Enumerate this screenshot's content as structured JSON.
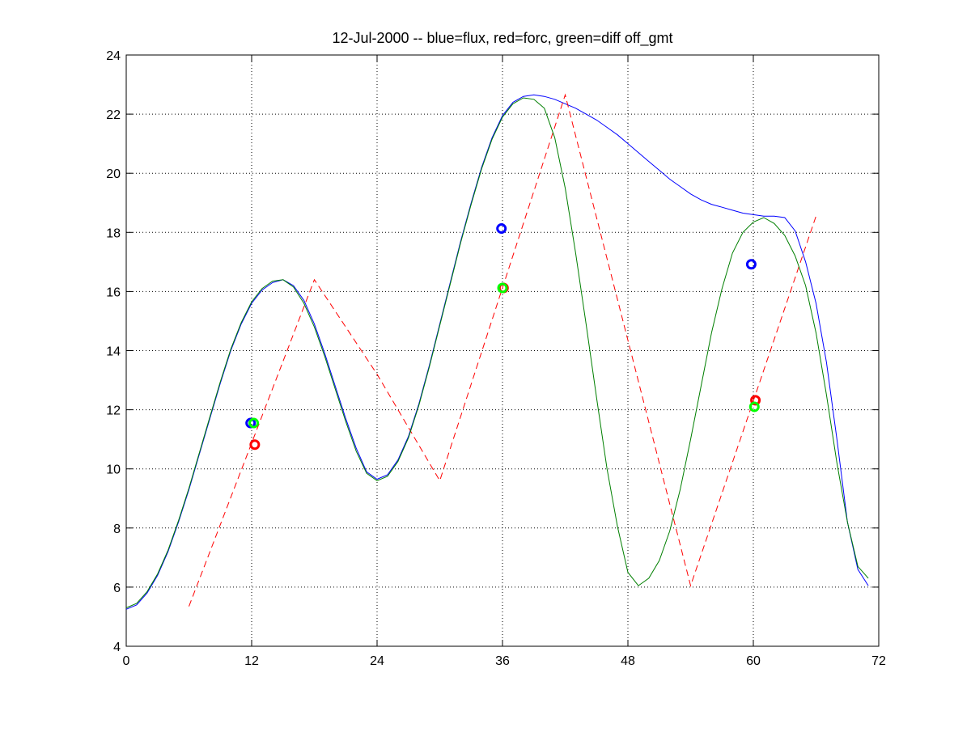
{
  "chart_data": {
    "type": "line",
    "title": "12-Jul-2000 -- blue=flux, red=forc, green=diff off_gmt",
    "xlabel": "",
    "ylabel": "",
    "xlim": [
      0,
      72
    ],
    "ylim": [
      4,
      24
    ],
    "xticks": [
      0,
      12,
      24,
      36,
      48,
      60,
      72
    ],
    "yticks": [
      4,
      6,
      8,
      10,
      12,
      14,
      16,
      18,
      20,
      22,
      24
    ],
    "grid": true,
    "series": [
      {
        "color": "#0000ff",
        "style": "solid",
        "points": [
          [
            0,
            5.25
          ],
          [
            1,
            5.4
          ],
          [
            2,
            5.8
          ],
          [
            3,
            6.4
          ],
          [
            4,
            7.2
          ],
          [
            5,
            8.2
          ],
          [
            6,
            9.3
          ],
          [
            7,
            10.5
          ],
          [
            8,
            11.7
          ],
          [
            9,
            12.9
          ],
          [
            10,
            14.0
          ],
          [
            11,
            14.9
          ],
          [
            12,
            15.6
          ],
          [
            13,
            16.05
          ],
          [
            14,
            16.3
          ],
          [
            15,
            16.4
          ],
          [
            16,
            16.2
          ],
          [
            17,
            15.7
          ],
          [
            18,
            14.9
          ],
          [
            19,
            13.9
          ],
          [
            20,
            12.8
          ],
          [
            21,
            11.7
          ],
          [
            22,
            10.7
          ],
          [
            23,
            9.9
          ],
          [
            24,
            9.65
          ],
          [
            25,
            9.8
          ],
          [
            26,
            10.3
          ],
          [
            27,
            11.1
          ],
          [
            28,
            12.2
          ],
          [
            29,
            13.5
          ],
          [
            30,
            14.9
          ],
          [
            31,
            16.3
          ],
          [
            32,
            17.7
          ],
          [
            33,
            19.0
          ],
          [
            34,
            20.2
          ],
          [
            35,
            21.2
          ],
          [
            36,
            21.95
          ],
          [
            37,
            22.4
          ],
          [
            38,
            22.6
          ],
          [
            39,
            22.65
          ],
          [
            40,
            22.6
          ],
          [
            41,
            22.5
          ],
          [
            42,
            22.35
          ],
          [
            43,
            22.2
          ],
          [
            44,
            22.0
          ],
          [
            45,
            21.8
          ],
          [
            46,
            21.55
          ],
          [
            47,
            21.3
          ],
          [
            48,
            21.0
          ],
          [
            49,
            20.7
          ],
          [
            50,
            20.4
          ],
          [
            51,
            20.1
          ],
          [
            52,
            19.8
          ],
          [
            53,
            19.55
          ],
          [
            54,
            19.3
          ],
          [
            55,
            19.1
          ],
          [
            56,
            18.95
          ],
          [
            57,
            18.85
          ],
          [
            58,
            18.75
          ],
          [
            59,
            18.65
          ],
          [
            60,
            18.6
          ],
          [
            61,
            18.55
          ],
          [
            62,
            18.55
          ],
          [
            63,
            18.5
          ],
          [
            64,
            18.05
          ],
          [
            65,
            17.0
          ],
          [
            66,
            15.6
          ],
          [
            67,
            13.6
          ],
          [
            68,
            11.0
          ],
          [
            69,
            8.2
          ],
          [
            70,
            6.6
          ],
          [
            71,
            6.05
          ]
        ]
      },
      {
        "color": "#ff0000",
        "style": "dashed",
        "points": [
          [
            6,
            5.35
          ],
          [
            18,
            16.4
          ],
          [
            24,
            13.2
          ],
          [
            30,
            9.6
          ],
          [
            42,
            22.65
          ],
          [
            54,
            6.05
          ],
          [
            66,
            18.55
          ]
        ]
      },
      {
        "color": "#007f00",
        "style": "solid",
        "points": [
          [
            0,
            5.3
          ],
          [
            1,
            5.45
          ],
          [
            2,
            5.85
          ],
          [
            3,
            6.45
          ],
          [
            4,
            7.25
          ],
          [
            5,
            8.25
          ],
          [
            6,
            9.35
          ],
          [
            7,
            10.55
          ],
          [
            8,
            11.75
          ],
          [
            9,
            12.95
          ],
          [
            10,
            14.05
          ],
          [
            11,
            14.95
          ],
          [
            12,
            15.65
          ],
          [
            13,
            16.1
          ],
          [
            14,
            16.35
          ],
          [
            15,
            16.4
          ],
          [
            16,
            16.15
          ],
          [
            17,
            15.6
          ],
          [
            18,
            14.8
          ],
          [
            19,
            13.8
          ],
          [
            20,
            12.7
          ],
          [
            21,
            11.6
          ],
          [
            22,
            10.6
          ],
          [
            23,
            9.85
          ],
          [
            24,
            9.6
          ],
          [
            25,
            9.75
          ],
          [
            26,
            10.25
          ],
          [
            27,
            11.05
          ],
          [
            28,
            12.15
          ],
          [
            29,
            13.45
          ],
          [
            30,
            14.85
          ],
          [
            31,
            16.25
          ],
          [
            32,
            17.65
          ],
          [
            33,
            18.95
          ],
          [
            34,
            20.15
          ],
          [
            35,
            21.15
          ],
          [
            36,
            21.9
          ],
          [
            37,
            22.35
          ],
          [
            38,
            22.55
          ],
          [
            39,
            22.5
          ],
          [
            40,
            22.2
          ],
          [
            41,
            21.2
          ],
          [
            42,
            19.5
          ],
          [
            43,
            17.3
          ],
          [
            44,
            14.9
          ],
          [
            45,
            12.4
          ],
          [
            46,
            10.0
          ],
          [
            47,
            8.05
          ],
          [
            48,
            6.5
          ],
          [
            49,
            6.05
          ],
          [
            50,
            6.3
          ],
          [
            51,
            6.9
          ],
          [
            52,
            7.9
          ],
          [
            53,
            9.3
          ],
          [
            54,
            11.0
          ],
          [
            55,
            12.8
          ],
          [
            56,
            14.6
          ],
          [
            57,
            16.1
          ],
          [
            58,
            17.3
          ],
          [
            59,
            18.0
          ],
          [
            60,
            18.35
          ],
          [
            61,
            18.5
          ],
          [
            62,
            18.3
          ],
          [
            63,
            17.9
          ],
          [
            64,
            17.2
          ],
          [
            65,
            16.2
          ],
          [
            66,
            14.6
          ],
          [
            67,
            12.5
          ],
          [
            68,
            10.2
          ],
          [
            69,
            8.2
          ],
          [
            70,
            6.7
          ],
          [
            71,
            6.3
          ]
        ]
      }
    ],
    "markers": [
      {
        "color": "#0000ff",
        "x": 11.9,
        "y": 11.55
      },
      {
        "color": "#00ff00",
        "x": 12.2,
        "y": 11.55
      },
      {
        "color": "#ff0000",
        "x": 12.3,
        "y": 10.82
      },
      {
        "color": "#0000ff",
        "x": 35.9,
        "y": 18.13
      },
      {
        "color": "#ff0000",
        "x": 36.1,
        "y": 16.12
      },
      {
        "color": "#00ff00",
        "x": 36.0,
        "y": 16.12
      },
      {
        "color": "#0000ff",
        "x": 59.8,
        "y": 16.92
      },
      {
        "color": "#ff0000",
        "x": 60.2,
        "y": 12.32
      },
      {
        "color": "#00ff00",
        "x": 60.1,
        "y": 12.1
      }
    ]
  }
}
